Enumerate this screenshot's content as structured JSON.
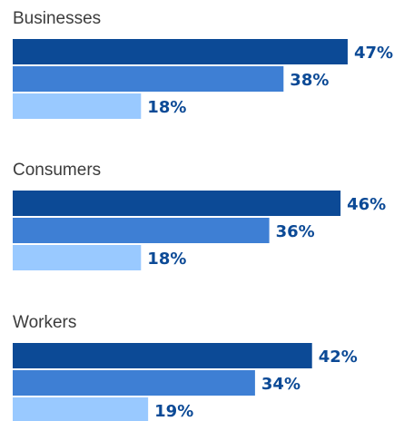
{
  "chart_data": {
    "type": "bar",
    "orientation": "horizontal",
    "xlim": [
      0,
      100
    ],
    "grid": false,
    "legend": "none",
    "value_suffix": "%",
    "groups": [
      {
        "label": "Businesses",
        "values": [
          47,
          38,
          18
        ]
      },
      {
        "label": "Consumers",
        "values": [
          46,
          36,
          18
        ]
      },
      {
        "label": "Workers",
        "values": [
          42,
          34,
          19
        ]
      }
    ],
    "series_colors": [
      "#0c4a96",
      "#3e7fd4",
      "#99c9ff"
    ],
    "label_color": "#0c4a96"
  }
}
